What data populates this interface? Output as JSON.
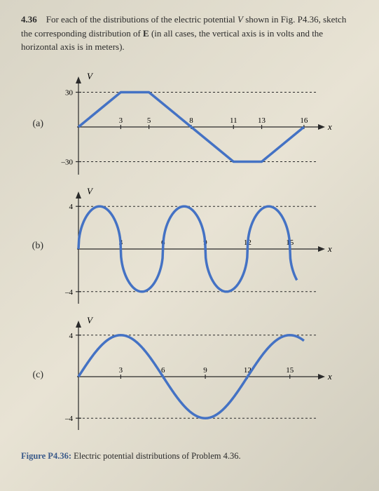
{
  "problem": {
    "number": "4.36",
    "text_parts": [
      "For each of the distributions of the electric potential ",
      " shown in Fig. P4.36, sketch the corresponding distribution of ",
      " (in all cases, the vertical axis is in volts and the horizontal axis is in meters)."
    ],
    "symbol_V": "V",
    "symbol_E": "E"
  },
  "styling": {
    "curve_color": "#4472c4",
    "curve_width": 3.5,
    "axis_color": "#2a2a2a",
    "axis_width": 1.2,
    "dash_pattern": "3,3",
    "tick_fontsize": 11,
    "label_fontsize": 13
  },
  "chart_a": {
    "label": "(a)",
    "y_label": "V",
    "x_label": "x",
    "y_ticks": [
      30,
      -30
    ],
    "x_ticks": [
      3,
      5,
      8,
      11,
      13,
      16
    ],
    "xlim": [
      0,
      17
    ],
    "ylim": [
      -40,
      40
    ],
    "points": [
      [
        0,
        0
      ],
      [
        3,
        30
      ],
      [
        5,
        30
      ],
      [
        8,
        0
      ],
      [
        11,
        -30
      ],
      [
        13,
        -30
      ],
      [
        16,
        0
      ]
    ]
  },
  "chart_b": {
    "label": "(b)",
    "y_label": "V",
    "x_label": "x",
    "y_ticks": [
      4,
      -4
    ],
    "x_ticks": [
      3,
      6,
      9,
      12,
      15
    ],
    "xlim": [
      0,
      17
    ],
    "ylim": [
      -5,
      5
    ],
    "amplitude": 4,
    "period": 3,
    "sharpness": 2.2
  },
  "chart_c": {
    "label": "(c)",
    "y_label": "V",
    "x_label": "x",
    "y_ticks": [
      4,
      -4
    ],
    "x_ticks": [
      3,
      6,
      9,
      12,
      15
    ],
    "xlim": [
      0,
      17
    ],
    "ylim": [
      -5,
      5
    ],
    "amplitude": 4,
    "period": 12,
    "phase": 0
  },
  "caption": {
    "title": "Figure P4.36:",
    "text": " Electric potential distributions of Problem 4.36."
  }
}
